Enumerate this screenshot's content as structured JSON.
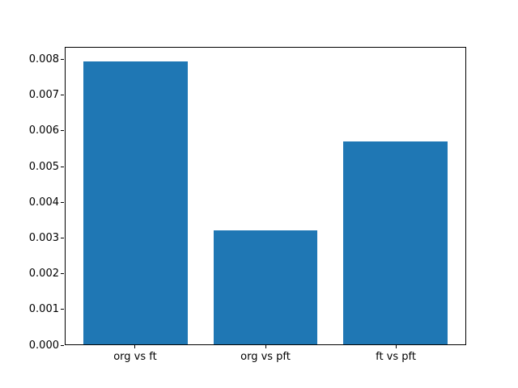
{
  "chart_data": {
    "type": "bar",
    "title": "",
    "xlabel": "",
    "ylabel": "",
    "categories": [
      "org vs ft",
      "org vs pft",
      "ft vs pft"
    ],
    "values": [
      0.00797,
      0.00321,
      0.00572
    ],
    "ylim": [
      0,
      0.00835
    ],
    "ytick_values": [
      0,
      0.001,
      0.002,
      0.003,
      0.004,
      0.005,
      0.006,
      0.007,
      0.008
    ],
    "ytick_labels": [
      "0.000",
      "0.001",
      "0.002",
      "0.003",
      "0.004",
      "0.005",
      "0.006",
      "0.007",
      "0.008"
    ],
    "bar_color": "#1f77b4",
    "axis_color": "#000000",
    "background_color": "#ffffff",
    "grid": false,
    "legend": null
  }
}
